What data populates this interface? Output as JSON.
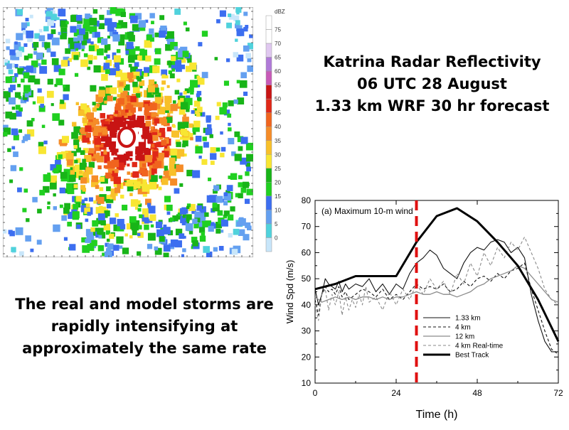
{
  "title_lines": [
    "Katrina Radar Reflectivity",
    "06 UTC 28 August",
    "1.33 km WRF 30 hr forecast"
  ],
  "caption": "The real and model storms are rapidly intensifying at approximately the same rate",
  "colorbar": {
    "unit": "dBZ",
    "ticks": [
      "75",
      "70",
      "65",
      "60",
      "55",
      "50",
      "45",
      "40",
      "35",
      "30",
      "25",
      "20",
      "15",
      "10",
      "5",
      "0"
    ],
    "colors": [
      "#ffffff",
      "#ffffff",
      "#e0c8f0",
      "#b07ad8",
      "#c85ab8",
      "#c81414",
      "#e02818",
      "#f0641e",
      "#f58c28",
      "#f8c02a",
      "#f8e632",
      "#18b418",
      "#20d020",
      "#3c6ef0",
      "#64a0f0",
      "#50d2dc",
      "#c8e6fa"
    ]
  },
  "chart_data": {
    "type": "line",
    "title": "(a) Maximum 10-m wind",
    "xlabel": "Time (h)",
    "ylabel": "Wind Spd (m/s)",
    "xlim": [
      0,
      72
    ],
    "ylim": [
      10,
      80
    ],
    "xticks": [
      "0",
      "24",
      "48",
      "72"
    ],
    "yticks": [
      "10",
      "20",
      "30",
      "40",
      "50",
      "60",
      "70",
      "80"
    ],
    "grid": false,
    "legend_position": "lower-center",
    "marker_line": {
      "x": 30,
      "color": "#e01010",
      "style": "dashed"
    },
    "series": [
      {
        "name": "1.33 km",
        "style": "solid-thin",
        "color": "#111111",
        "x": [
          0,
          1,
          2,
          3,
          4,
          5,
          6,
          7,
          8,
          9,
          10,
          12,
          14,
          16,
          18,
          20,
          22,
          24,
          26,
          28,
          30,
          32,
          34,
          36,
          38,
          40,
          42,
          44,
          46,
          48,
          50,
          52,
          54,
          56,
          58,
          60,
          62,
          64,
          66,
          68,
          70,
          72
        ],
        "y": [
          46,
          40,
          44,
          50,
          48,
          47,
          46,
          49,
          45,
          48,
          46,
          48,
          47,
          50,
          45,
          48,
          44,
          48,
          46,
          52,
          56,
          58,
          61,
          59,
          54,
          52,
          50,
          56,
          60,
          62,
          61,
          64,
          65,
          64,
          60,
          62,
          58,
          44,
          34,
          26,
          22,
          22
        ]
      },
      {
        "name": "4 km",
        "style": "dashed",
        "color": "#111111",
        "x": [
          0,
          1,
          2,
          3,
          4,
          5,
          6,
          7,
          8,
          9,
          10,
          12,
          14,
          16,
          18,
          20,
          22,
          24,
          26,
          28,
          30,
          32,
          34,
          36,
          38,
          40,
          42,
          44,
          46,
          48,
          50,
          52,
          54,
          56,
          58,
          60,
          62,
          64,
          66,
          68,
          70,
          72
        ],
        "y": [
          42,
          36,
          44,
          47,
          45,
          46,
          44,
          47,
          43,
          45,
          42,
          44,
          46,
          45,
          43,
          46,
          42,
          44,
          42,
          45,
          48,
          46,
          47,
          46,
          48,
          45,
          46,
          49,
          47,
          50,
          51,
          49,
          52,
          50,
          53,
          54,
          56,
          46,
          38,
          30,
          23,
          21
        ]
      },
      {
        "name": "12 km",
        "style": "solid-gray",
        "color": "#8a8a8a",
        "x": [
          0,
          2,
          4,
          6,
          8,
          10,
          12,
          14,
          16,
          18,
          20,
          22,
          24,
          26,
          28,
          30,
          32,
          34,
          36,
          38,
          40,
          42,
          44,
          46,
          48,
          50,
          52,
          54,
          56,
          58,
          60,
          62,
          64,
          66,
          68,
          70,
          72
        ],
        "y": [
          43,
          41,
          42,
          43,
          42,
          43,
          42,
          43,
          43,
          42,
          43,
          42,
          43,
          43,
          44,
          45,
          44,
          44,
          45,
          44,
          44,
          43,
          44,
          45,
          47,
          48,
          50,
          51,
          52,
          53,
          55,
          54,
          51,
          48,
          45,
          42,
          41
        ]
      },
      {
        "name": "4 km Real-time",
        "style": "dashed-gray",
        "color": "#8a8a8a",
        "x": [
          0,
          1,
          2,
          3,
          4,
          5,
          6,
          7,
          8,
          9,
          10,
          11,
          12,
          13,
          14,
          15,
          16,
          18,
          20,
          22,
          24,
          26,
          28,
          30,
          32,
          34,
          36,
          38,
          40,
          42,
          44,
          46,
          48,
          50,
          52,
          54,
          56,
          58,
          60,
          62,
          64,
          66,
          68,
          70,
          72
        ],
        "y": [
          40,
          34,
          44,
          46,
          38,
          44,
          40,
          45,
          36,
          43,
          38,
          42,
          39,
          44,
          40,
          47,
          41,
          43,
          38,
          45,
          40,
          46,
          42,
          48,
          44,
          50,
          46,
          49,
          44,
          52,
          48,
          56,
          51,
          60,
          55,
          62,
          58,
          64,
          61,
          66,
          60,
          54,
          46,
          42,
          40
        ]
      },
      {
        "name": "Best Track",
        "style": "solid-thick",
        "color": "#000000",
        "x": [
          0,
          6,
          12,
          18,
          24,
          30,
          36,
          42,
          48,
          54,
          60,
          66,
          72
        ],
        "y": [
          46,
          48,
          51,
          51,
          51,
          64,
          74,
          77,
          72,
          64,
          55,
          42,
          26
        ]
      }
    ]
  }
}
